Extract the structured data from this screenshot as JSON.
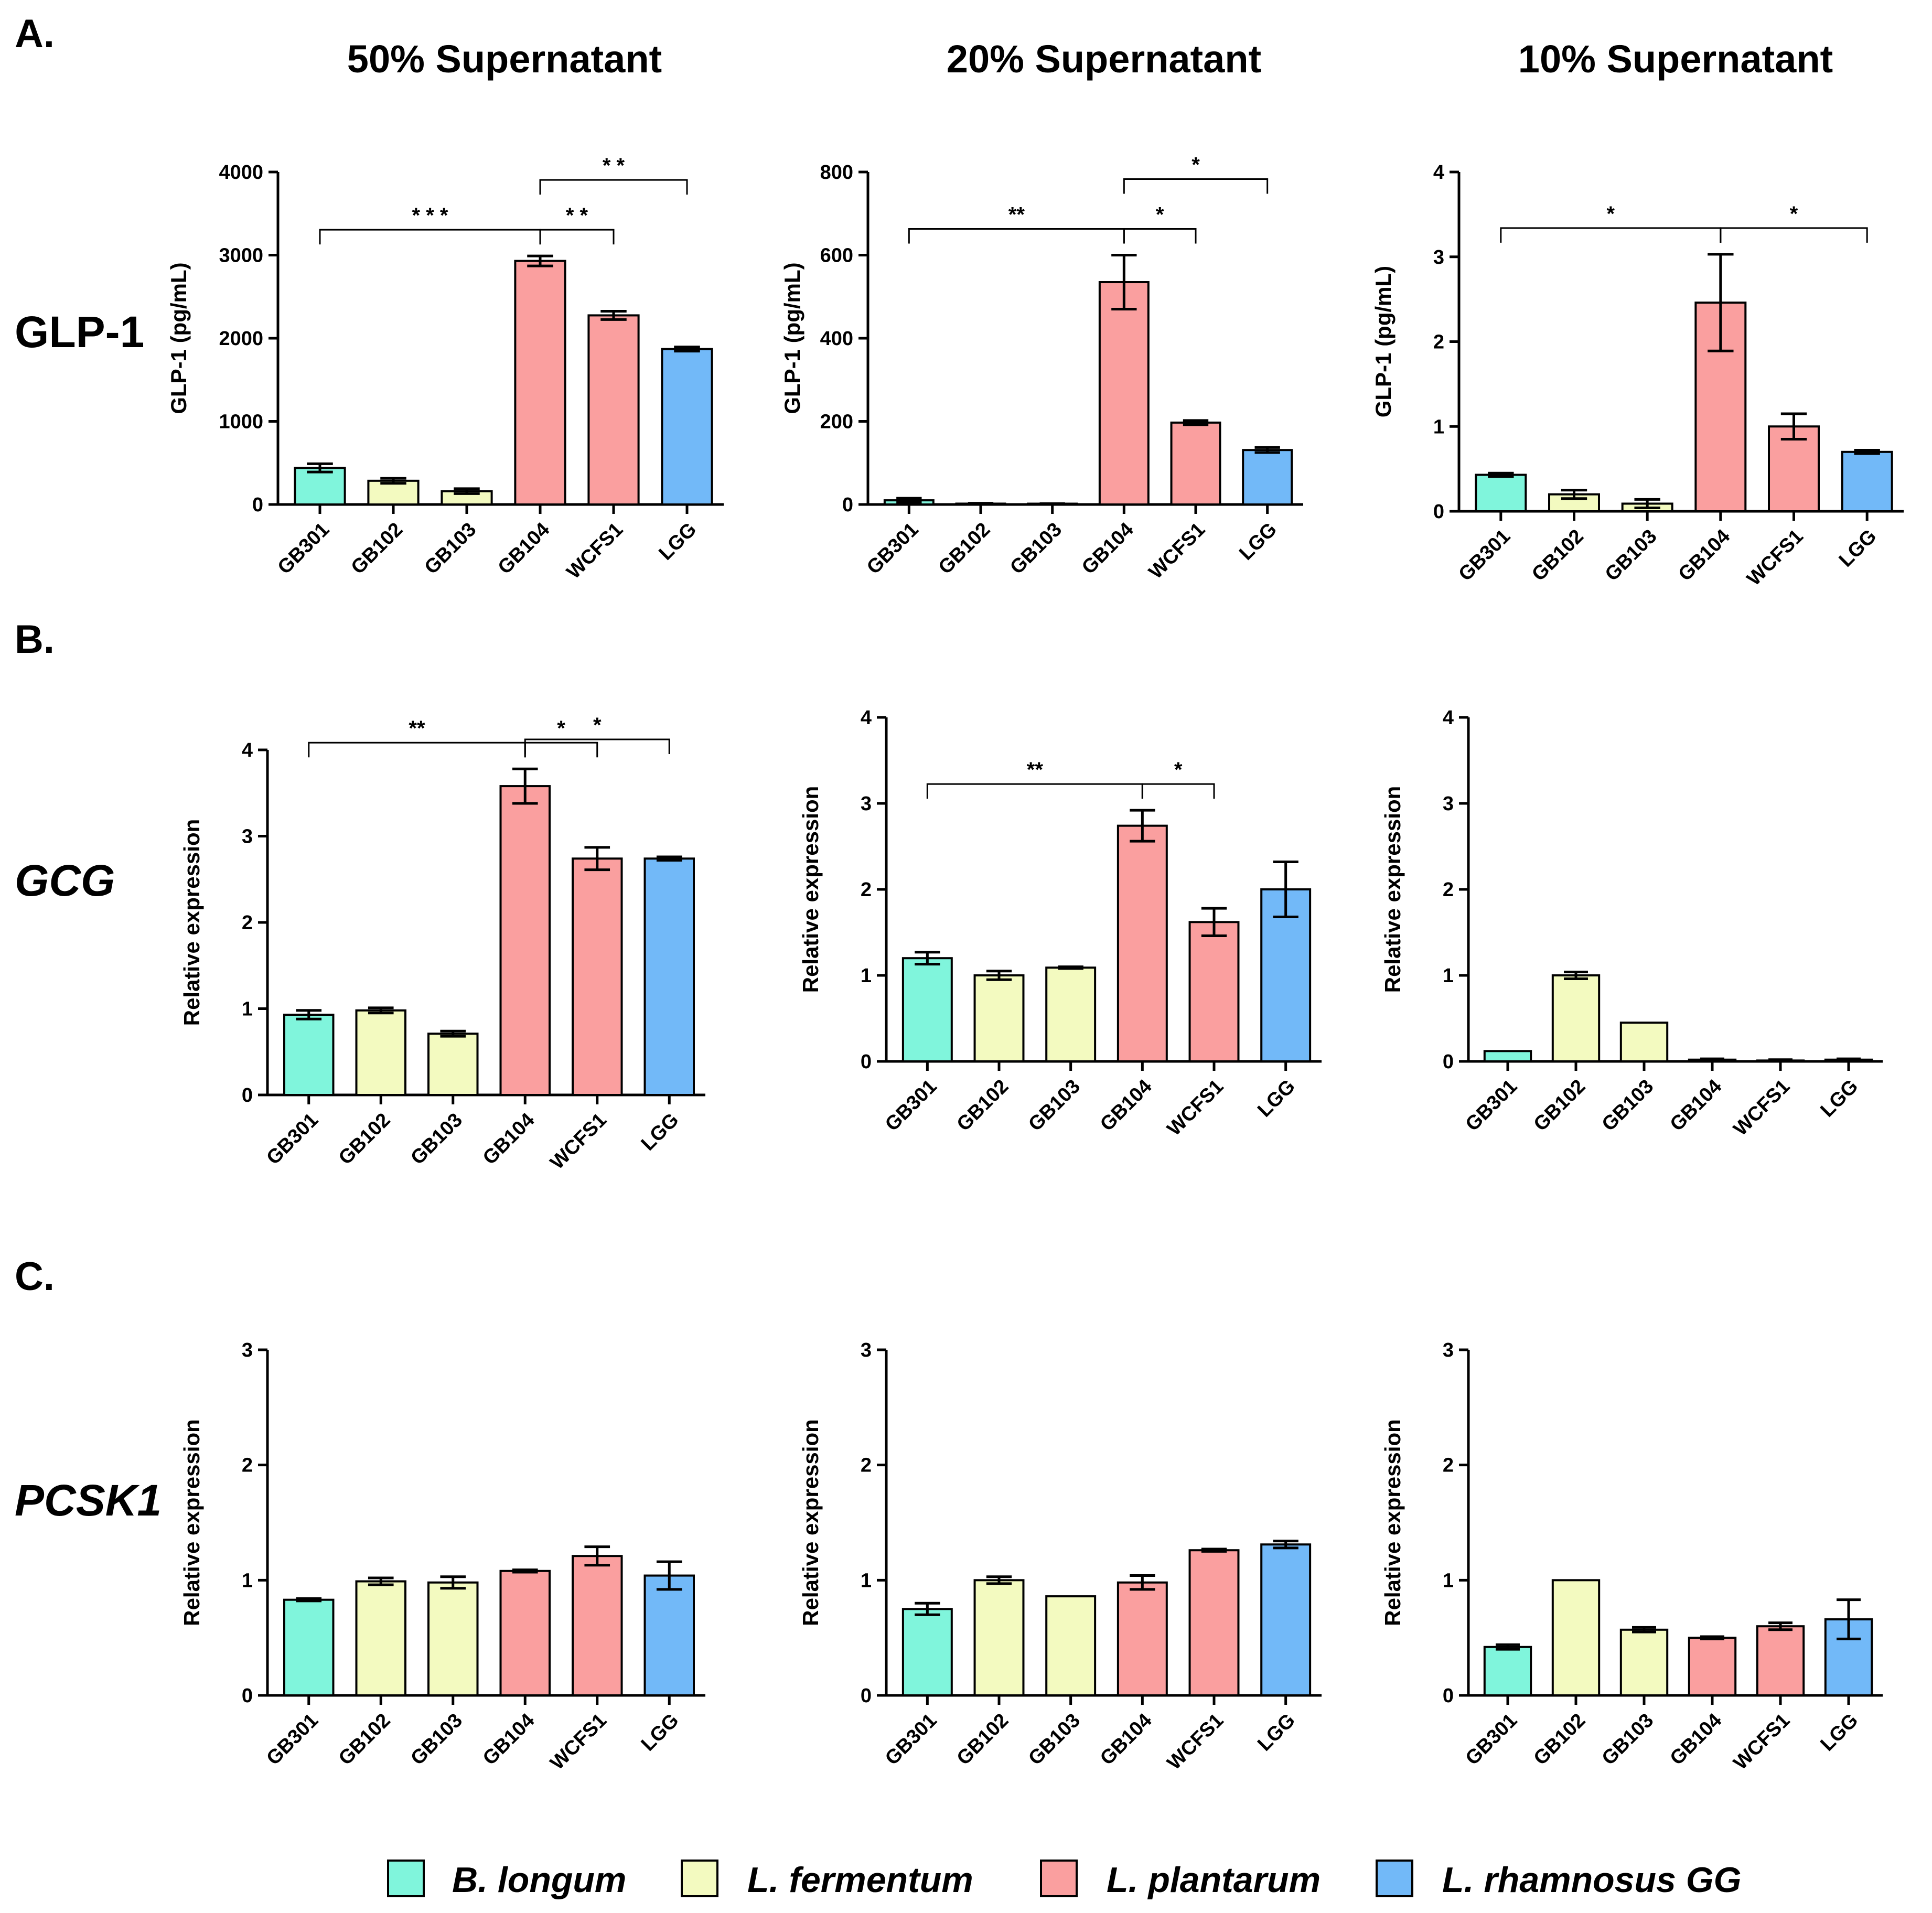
{
  "panels": [
    {
      "letter": "A."
    },
    {
      "letter": "B."
    },
    {
      "letter": "C."
    }
  ],
  "column_titles": [
    "50% Supernatant",
    "20% Supernatant",
    "10% Supernatant"
  ],
  "row_labels": [
    {
      "text": "GLP-1",
      "italic": false
    },
    {
      "text": "GCG",
      "italic": true
    },
    {
      "text": "PCSK1",
      "italic": true
    }
  ],
  "colors": {
    "B. longum": "#80f5dc",
    "L. fermentum": "#f3fac0",
    "L. plantarum": "#fa9f9f",
    "L. rhamnosus GG": "#72b9f8",
    "axis": "#000000"
  },
  "legend": [
    {
      "label": "B. longum",
      "color": "#80f5dc"
    },
    {
      "label": "L. fermentum",
      "color": "#f3fac0"
    },
    {
      "label": "L. plantarum",
      "color": "#fa9f9f"
    },
    {
      "label": "L. rhamnosus GG",
      "color": "#72b9f8"
    }
  ],
  "categories": [
    "GB301",
    "GB102",
    "GB103",
    "GB104",
    "WCFS1",
    "LGG"
  ],
  "category_species": [
    "B. longum",
    "L. fermentum",
    "L. fermentum",
    "L. plantarum",
    "L. plantarum",
    "L. rhamnosus GG"
  ],
  "chart_data": [
    {
      "id": "A1",
      "type": "bar",
      "row": "GLP-1",
      "title": "50% Supernatant",
      "ylabel": "GLP-1 (pg/mL)",
      "ylim": [
        0,
        4000
      ],
      "yticks": [
        0,
        1000,
        2000,
        3000,
        4000
      ],
      "categories": [
        "GB301",
        "GB102",
        "GB103",
        "GB104",
        "WCFS1",
        "LGG"
      ],
      "values": [
        440,
        285,
        160,
        2930,
        2275,
        1870
      ],
      "errors": [
        50,
        30,
        30,
        60,
        50,
        25
      ],
      "significance": [
        {
          "from": 0,
          "to": 3,
          "label": "* * *",
          "level": 0
        },
        {
          "from": 3,
          "to": 4,
          "label": "* *",
          "level": 0
        },
        {
          "from": 3,
          "to": 5,
          "label": "* *",
          "level": 1
        }
      ]
    },
    {
      "id": "A2",
      "type": "bar",
      "row": "GLP-1",
      "title": "20% Supernatant",
      "ylabel": "GLP-1 (pg/mL)",
      "ylim": [
        0,
        800
      ],
      "yticks": [
        0,
        200,
        400,
        600,
        800
      ],
      "categories": [
        "GB301",
        "GB102",
        "GB103",
        "GB104",
        "WCFS1",
        "LGG"
      ],
      "values": [
        10,
        2,
        1,
        535,
        197,
        131
      ],
      "errors": [
        5,
        1,
        1,
        65,
        5,
        6
      ],
      "significance": [
        {
          "from": 0,
          "to": 3,
          "label": "**",
          "level": 0
        },
        {
          "from": 3,
          "to": 4,
          "label": "*",
          "level": 0
        },
        {
          "from": 3,
          "to": 5,
          "label": "*",
          "level": 1
        }
      ]
    },
    {
      "id": "A3",
      "type": "bar",
      "row": "GLP-1",
      "title": "10% Supernatant",
      "ylabel": "GLP-1 (pg/mL)",
      "ylim": [
        0,
        4
      ],
      "yticks": [
        0,
        1,
        2,
        3,
        4
      ],
      "categories": [
        "GB301",
        "GB102",
        "GB103",
        "GB104",
        "WCFS1",
        "LGG"
      ],
      "values": [
        0.43,
        0.2,
        0.09,
        2.46,
        1.0,
        0.7
      ],
      "errors": [
        0.02,
        0.05,
        0.05,
        0.57,
        0.15,
        0.02
      ],
      "significance": [
        {
          "from": 0,
          "to": 3,
          "label": "*",
          "level": 0
        },
        {
          "from": 3,
          "to": 5,
          "label": "*",
          "level": 0
        }
      ]
    },
    {
      "id": "B1",
      "type": "bar",
      "row": "GCG",
      "title": "50% Supernatant",
      "ylabel": "Relative expression",
      "ylim": [
        0,
        4
      ],
      "yticks": [
        0,
        1,
        2,
        3,
        4
      ],
      "categories": [
        "GB301",
        "GB102",
        "GB103",
        "GB104",
        "WCFS1",
        "LGG"
      ],
      "values": [
        0.93,
        0.98,
        0.71,
        3.58,
        2.74,
        2.74
      ],
      "errors": [
        0.05,
        0.03,
        0.03,
        0.2,
        0.13,
        0.02
      ],
      "significance": [
        {
          "from": 0,
          "to": 3,
          "label": "**",
          "level": 0
        },
        {
          "from": 3,
          "to": 4,
          "label": "*",
          "level": 0
        },
        {
          "from": 3,
          "to": 5,
          "label": "*",
          "level": 1
        }
      ]
    },
    {
      "id": "B2",
      "type": "bar",
      "row": "GCG",
      "title": "20% Supernatant",
      "ylabel": "Relative expression",
      "ylim": [
        0,
        4
      ],
      "yticks": [
        0,
        1,
        2,
        3,
        4
      ],
      "categories": [
        "GB301",
        "GB102",
        "GB103",
        "GB104",
        "WCFS1",
        "LGG"
      ],
      "values": [
        1.2,
        1.0,
        1.09,
        2.74,
        1.62,
        2.0
      ],
      "errors": [
        0.07,
        0.05,
        0.01,
        0.18,
        0.16,
        0.32
      ],
      "significance": [
        {
          "from": 0,
          "to": 3,
          "label": "**",
          "level": 0
        },
        {
          "from": 3,
          "to": 4,
          "label": "*",
          "level": 0
        }
      ]
    },
    {
      "id": "B3",
      "type": "bar",
      "row": "GCG",
      "title": "10% Supernatant",
      "ylabel": "Relative expression",
      "ylim": [
        0,
        4
      ],
      "yticks": [
        0,
        1,
        2,
        3,
        4
      ],
      "categories": [
        "GB301",
        "GB102",
        "GB103",
        "GB104",
        "WCFS1",
        "LGG"
      ],
      "values": [
        0.12,
        1.0,
        0.45,
        0.02,
        0.01,
        0.02
      ],
      "errors": [
        0.0,
        0.04,
        0.0,
        0.01,
        0.01,
        0.01
      ],
      "significance": []
    },
    {
      "id": "C1",
      "type": "bar",
      "row": "PCSK1",
      "title": "50% Supernatant",
      "ylabel": "Relative expression",
      "ylim": [
        0,
        3
      ],
      "yticks": [
        0,
        1,
        2,
        3
      ],
      "categories": [
        "GB301",
        "GB102",
        "GB103",
        "GB104",
        "WCFS1",
        "LGG"
      ],
      "values": [
        0.83,
        0.99,
        0.98,
        1.08,
        1.21,
        1.04
      ],
      "errors": [
        0.01,
        0.03,
        0.05,
        0.01,
        0.08,
        0.12
      ],
      "significance": []
    },
    {
      "id": "C2",
      "type": "bar",
      "row": "PCSK1",
      "title": "20% Supernatant",
      "ylabel": "Relative expression",
      "ylim": [
        0,
        3
      ],
      "yticks": [
        0,
        1,
        2,
        3
      ],
      "categories": [
        "GB301",
        "GB102",
        "GB103",
        "GB104",
        "WCFS1",
        "LGG"
      ],
      "values": [
        0.75,
        1.0,
        0.86,
        0.98,
        1.26,
        1.31
      ],
      "errors": [
        0.05,
        0.03,
        0.0,
        0.06,
        0.01,
        0.03
      ],
      "significance": []
    },
    {
      "id": "C3",
      "type": "bar",
      "row": "PCSK1",
      "title": "10% Supernatant",
      "ylabel": "Relative expression",
      "ylim": [
        0,
        3
      ],
      "yticks": [
        0,
        1,
        2,
        3
      ],
      "categories": [
        "GB301",
        "GB102",
        "GB103",
        "GB104",
        "WCFS1",
        "LGG"
      ],
      "values": [
        0.42,
        1.0,
        0.57,
        0.5,
        0.6,
        0.66
      ],
      "errors": [
        0.02,
        0.0,
        0.02,
        0.01,
        0.03,
        0.17
      ],
      "significance": []
    }
  ]
}
